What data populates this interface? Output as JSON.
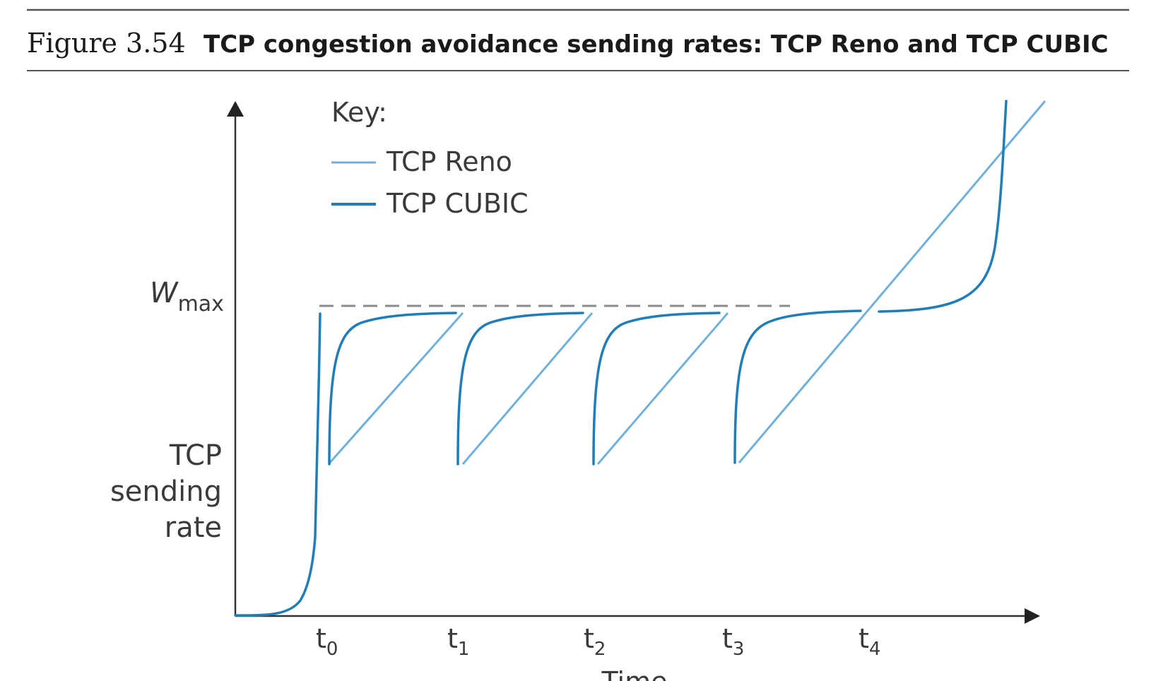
{
  "caption": {
    "number": "Figure 3.54",
    "title": "TCP congestion avoidance sending rates: TCP Reno and TCP CUBIC"
  },
  "legend": {
    "key_label": "Key:",
    "reno_label": "TCP Reno",
    "cubic_label": "TCP CUBIC"
  },
  "axes": {
    "y_label_lines": [
      "TCP",
      "sending",
      "rate"
    ],
    "wmax_main": "W",
    "wmax_sub": "max",
    "x_label": "Time",
    "ticks": [
      {
        "base": "t",
        "sub": "0"
      },
      {
        "base": "t",
        "sub": "1"
      },
      {
        "base": "t",
        "sub": "2"
      },
      {
        "base": "t",
        "sub": "3"
      },
      {
        "base": "t",
        "sub": "4"
      }
    ]
  },
  "colors": {
    "reno": "#6fb0dc",
    "cubic": "#1f7db8",
    "dashed": "#8a8a8a",
    "axis": "#333333",
    "rule": "#555555"
  }
}
